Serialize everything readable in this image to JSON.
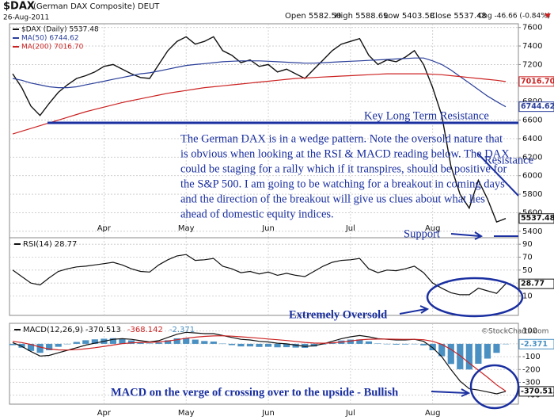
{
  "header": {
    "symbol": "$DAX",
    "name": "(German DAX Composite) DEUT",
    "date": "26-Aug-2011",
    "quote": [
      "Open 5582.50",
      "High 5588.69",
      "Low 5403.58",
      "Close 5537.48",
      "Chg -46.66 (-0.84%)"
    ],
    "credit": "©StockCharts.com"
  },
  "annotations": {
    "comment": [
      "The German DAX is in a wedge pattern. Note the oversold nature that",
      "is obvious when looking at the RSI & MACD reading below. The DAX",
      "could be staging for a rally which if it transpires, should be positive for",
      "the S&P 500. I am going to be watching for a breakout in coming days",
      "and the direction of the breakout will give us clues about what lies",
      "ahead of domestic equity indices."
    ],
    "key_resistance": "Key Long Term Resistance",
    "resistance": "Resistance",
    "support": "Support",
    "oversold": "Extremely Oversold",
    "macd_note": "MACD on the verge of crossing over to the upside - Bullish"
  },
  "chart_data": [
    {
      "type": "line",
      "grid": true,
      "categories": [
        null,
        null,
        null,
        null,
        null,
        null,
        null,
        null,
        null,
        null,
        "Apr",
        null,
        null,
        null,
        null,
        null,
        null,
        null,
        null,
        "May",
        null,
        null,
        null,
        null,
        null,
        null,
        null,
        null,
        "Jun",
        null,
        null,
        null,
        null,
        null,
        null,
        null,
        null,
        "Jul",
        null,
        null,
        null,
        null,
        null,
        null,
        null,
        null,
        "Aug",
        null,
        null,
        null,
        null,
        null,
        null,
        null,
        null
      ],
      "ylim": [
        5330,
        7640
      ],
      "yticks": [
        5400,
        5600,
        5800,
        6000,
        6200,
        6400,
        6600,
        6800,
        7000,
        7200,
        7400,
        7600
      ],
      "series": [
        {
          "name": "$DAX (Daily)",
          "color": "#111111",
          "values": [
            7100,
            6950,
            6750,
            6650,
            6780,
            6900,
            6980,
            7050,
            7080,
            7120,
            7180,
            7200,
            7150,
            7100,
            7060,
            7050,
            7200,
            7350,
            7450,
            7500,
            7420,
            7450,
            7500,
            7350,
            7300,
            7220,
            7250,
            7180,
            7200,
            7120,
            7150,
            7100,
            7050,
            7150,
            7250,
            7350,
            7420,
            7450,
            7480,
            7300,
            7200,
            7250,
            7230,
            7280,
            7350,
            7200,
            6950,
            6650,
            6100,
            5800,
            5650,
            5950,
            5750,
            5500,
            5537.48
          ]
        },
        {
          "name": "MA(50)",
          "color": "#2a3f9a",
          "values": [
            7050,
            7030,
            7000,
            6980,
            6960,
            6950,
            6950,
            6960,
            6980,
            7000,
            7020,
            7040,
            7060,
            7080,
            7100,
            7110,
            7130,
            7150,
            7170,
            7190,
            7200,
            7210,
            7220,
            7230,
            7235,
            7240,
            7240,
            7240,
            7235,
            7230,
            7225,
            7220,
            7215,
            7215,
            7220,
            7225,
            7230,
            7235,
            7240,
            7245,
            7250,
            7255,
            7260,
            7265,
            7270,
            7270,
            7240,
            7200,
            7140,
            7070,
            7000,
            6930,
            6860,
            6800,
            6744.62
          ]
        },
        {
          "name": "MA(200)",
          "color": "#cc2222",
          "values": [
            6450,
            6480,
            6510,
            6540,
            6570,
            6600,
            6630,
            6660,
            6690,
            6715,
            6740,
            6765,
            6790,
            6810,
            6830,
            6850,
            6870,
            6890,
            6905,
            6920,
            6935,
            6950,
            6960,
            6970,
            6980,
            6990,
            7000,
            7010,
            7020,
            7030,
            7040,
            7050,
            7055,
            7060,
            7065,
            7070,
            7075,
            7080,
            7085,
            7090,
            7095,
            7100,
            7100,
            7100,
            7100,
            7100,
            7095,
            7090,
            7080,
            7070,
            7060,
            7050,
            7040,
            7030,
            7016.7
          ],
          "value_labels": [
            null,
            null,
            null,
            null,
            null,
            null,
            null,
            null,
            null,
            null,
            null,
            null,
            null,
            null,
            null,
            null,
            null,
            null,
            null,
            null,
            null,
            null,
            null,
            null,
            null,
            null,
            null,
            null,
            null,
            null,
            null,
            null,
            null,
            null,
            null,
            null,
            null,
            null,
            null,
            null,
            null,
            null,
            null,
            null,
            null,
            null,
            null,
            null,
            null,
            null,
            null,
            null,
            null,
            null,
            "7016.70"
          ]
        }
      ]
    },
    {
      "type": "line",
      "grid": true,
      "ylim": [
        -20,
        100
      ],
      "yticks": [
        10,
        30,
        50,
        70,
        90
      ],
      "series": [
        {
          "name": "RSI(14)",
          "color": "#111111",
          "values": [
            50,
            40,
            30,
            27,
            38,
            48,
            52,
            55,
            56,
            58,
            60,
            62,
            58,
            52,
            48,
            47,
            58,
            66,
            72,
            74,
            65,
            66,
            68,
            56,
            52,
            46,
            48,
            44,
            47,
            42,
            45,
            42,
            40,
            48,
            56,
            62,
            65,
            66,
            68,
            52,
            46,
            50,
            49,
            52,
            56,
            46,
            30,
            22,
            15,
            12,
            12,
            22,
            18,
            14,
            28.77
          ]
        }
      ]
    },
    {
      "type": "line",
      "grid": true,
      "ylim": [
        -470,
        160
      ],
      "yticks": [
        100,
        0,
        -100,
        -200,
        -300,
        -400
      ],
      "series": [
        {
          "name": "Histogram",
          "type": "bar",
          "color": "#4a90c2",
          "values": [
            -10,
            -30,
            -55,
            -70,
            -50,
            -23,
            -2,
            15,
            28,
            35,
            40,
            44,
            39,
            27,
            14,
            3,
            10,
            28,
            43,
            46,
            33,
            22,
            18,
            2,
            -10,
            -20,
            -20,
            -24,
            -23,
            -27,
            -26,
            -29,
            -31,
            -21,
            -5,
            12,
            26,
            33,
            34,
            19,
            3,
            -2,
            -6,
            -5,
            0,
            -12,
            -50,
            -96,
            -157,
            -198,
            -200,
            -155,
            -115,
            -70,
            -2.371
          ]
        },
        {
          "name": "MACD(12,26,9)",
          "color": "#111111",
          "values": [
            10,
            -20,
            -60,
            -95,
            -90,
            -70,
            -50,
            -30,
            -10,
            5,
            20,
            35,
            40,
            35,
            25,
            15,
            25,
            50,
            75,
            90,
            85,
            80,
            80,
            65,
            50,
            35,
            30,
            20,
            15,
            5,
            0,
            -10,
            -20,
            -15,
            0,
            20,
            40,
            55,
            65,
            55,
            40,
            35,
            30,
            30,
            35,
            20,
            -30,
            -100,
            -200,
            -290,
            -350,
            -360,
            -375,
            -390,
            -370.513
          ]
        },
        {
          "name": "Signal",
          "color": "#cc2222",
          "values": [
            20,
            10,
            -5,
            -25,
            -40,
            -47,
            -48,
            -45,
            -38,
            -30,
            -20,
            -9,
            1,
            8,
            11,
            12,
            15,
            22,
            32,
            44,
            52,
            58,
            62,
            63,
            60,
            55,
            50,
            44,
            38,
            32,
            26,
            19,
            11,
            6,
            5,
            8,
            14,
            22,
            31,
            36,
            37,
            37,
            36,
            35,
            35,
            32,
            20,
            -4,
            -43,
            -92,
            -150,
            -205,
            -260,
            -320,
            -368.142
          ]
        }
      ]
    }
  ]
}
